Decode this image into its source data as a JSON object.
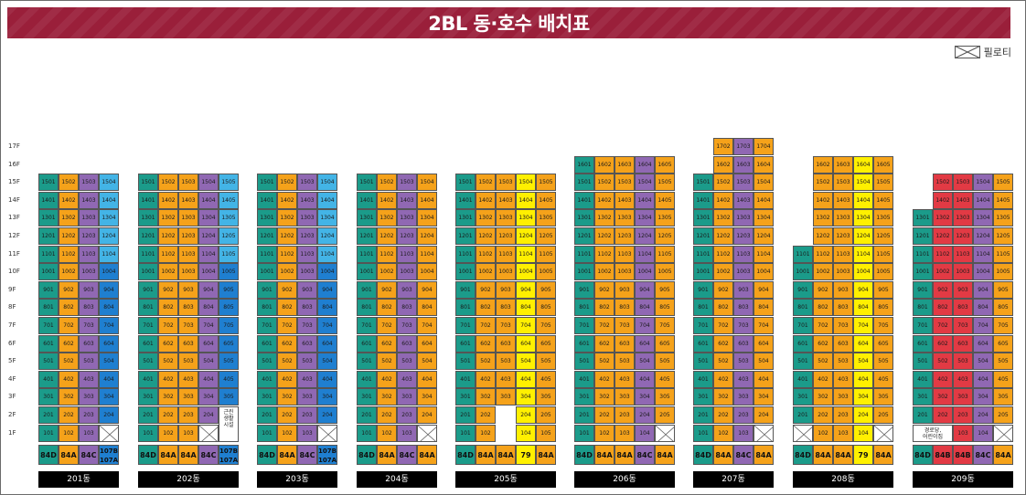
{
  "title": "2BL 동·호수 배치표",
  "legend": {
    "label": "필로티",
    "icon": "piloti-icon"
  },
  "floors": [
    "17F",
    "16F",
    "15F",
    "14F",
    "13F",
    "12F",
    "11F",
    "10F",
    "9F",
    "8F",
    "7F",
    "6F",
    "5F",
    "4F",
    "3F",
    "2F",
    "1F"
  ],
  "colors": {
    "84D": "#1b9b8a",
    "84A": "#f5a21a",
    "84B": "#e23a44",
    "84C": "#9068b3",
    "79": "#fff000",
    "107": "#43b4e6",
    "107dark": "#1f7fd0",
    "blank": "#ffffff"
  },
  "buildings": [
    {
      "label": "201동",
      "columns": [
        {
          "type": "84D",
          "suffix": "01",
          "top": 15,
          "bottom": 1
        },
        {
          "type": "84A",
          "suffix": "02",
          "top": 15,
          "bottom": 1
        },
        {
          "type": "84C",
          "suffix": "03",
          "top": 15,
          "bottom": 1
        },
        {
          "type": "107",
          "suffix": "04",
          "top": 15,
          "bottom": 2,
          "bottom_blank": true,
          "light_above": 11
        }
      ],
      "types": [
        "84D",
        "84A",
        "84C",
        "107B|107A"
      ]
    },
    {
      "label": "202동",
      "columns": [
        {
          "type": "84D",
          "suffix": "01",
          "top": 15,
          "bottom": 1
        },
        {
          "type": "84A",
          "suffix": "02",
          "top": 15,
          "bottom": 1
        },
        {
          "type": "84A",
          "suffix": "03",
          "top": 15,
          "bottom": 1
        },
        {
          "type": "84C",
          "suffix": "04",
          "top": 15,
          "bottom": 2,
          "bottom_blank": true
        },
        {
          "type": "107",
          "suffix": "05",
          "top": 15,
          "bottom": 3,
          "light_above": 11,
          "note": "근린\n생활\n시설"
        }
      ],
      "types": [
        "84D",
        "84A",
        "84A",
        "84C",
        "107B|107A"
      ]
    },
    {
      "label": "203동",
      "columns": [
        {
          "type": "84D",
          "suffix": "01",
          "top": 15,
          "bottom": 1
        },
        {
          "type": "84A",
          "suffix": "02",
          "top": 15,
          "bottom": 1
        },
        {
          "type": "84C",
          "suffix": "03",
          "top": 15,
          "bottom": 1
        },
        {
          "type": "107",
          "suffix": "04",
          "top": 15,
          "bottom": 2,
          "bottom_blank": true,
          "light_above": 11
        }
      ],
      "types": [
        "84D",
        "84A",
        "84C",
        "107B|107A"
      ]
    },
    {
      "label": "204동",
      "columns": [
        {
          "type": "84D",
          "suffix": "01",
          "top": 15,
          "bottom": 1
        },
        {
          "type": "84A",
          "suffix": "02",
          "top": 15,
          "bottom": 1
        },
        {
          "type": "84C",
          "suffix": "03",
          "top": 15,
          "bottom": 1
        },
        {
          "type": "84A",
          "suffix": "04",
          "top": 15,
          "bottom": 2,
          "bottom_blank": true
        }
      ],
      "types": [
        "84D",
        "84A",
        "84C",
        "84A"
      ]
    },
    {
      "label": "205동",
      "columns": [
        {
          "type": "84D",
          "suffix": "01",
          "top": 15,
          "bottom": 1
        },
        {
          "type": "84A",
          "suffix": "02",
          "top": 15,
          "bottom": 1
        },
        {
          "type": "84A",
          "suffix": "03",
          "top": 15,
          "bottom": 3,
          "blank_floors": [
            1,
            2
          ]
        },
        {
          "type": "79",
          "suffix": "04",
          "top": 15,
          "bottom": 1
        },
        {
          "type": "84A",
          "suffix": "05",
          "top": 15,
          "bottom": 1
        }
      ],
      "types": [
        "84D",
        "84A",
        "84A",
        "79",
        "84A"
      ]
    },
    {
      "label": "206동",
      "columns": [
        {
          "type": "84D",
          "suffix": "01",
          "top": 16,
          "bottom": 1
        },
        {
          "type": "84A",
          "suffix": "02",
          "top": 16,
          "bottom": 1
        },
        {
          "type": "84A",
          "suffix": "03",
          "top": 16,
          "bottom": 1
        },
        {
          "type": "84C",
          "suffix": "04",
          "top": 16,
          "bottom": 1
        },
        {
          "type": "84A",
          "suffix": "05",
          "top": 16,
          "bottom": 2,
          "bottom_blank": true
        }
      ],
      "types": [
        "84D",
        "84A",
        "84A",
        "84C",
        "84A"
      ]
    },
    {
      "label": "207동",
      "columns": [
        {
          "type": "84D",
          "suffix": "01",
          "top": 15,
          "bottom": 1
        },
        {
          "type": "84A",
          "suffix": "02",
          "top": 17,
          "bottom": 1
        },
        {
          "type": "84C",
          "suffix": "03",
          "top": 17,
          "bottom": 1
        },
        {
          "type": "84A",
          "suffix": "04",
          "top": 17,
          "bottom": 2,
          "bottom_blank": true
        }
      ],
      "types": [
        "84D",
        "84A",
        "84C",
        "84A"
      ]
    },
    {
      "label": "208동",
      "columns": [
        {
          "type": "84D",
          "suffix": "01",
          "top": 11,
          "bottom": 2,
          "bottom_blank": true
        },
        {
          "type": "84A",
          "suffix": "02",
          "top": 16,
          "bottom": 1
        },
        {
          "type": "84A",
          "suffix": "03",
          "top": 16,
          "bottom": 1
        },
        {
          "type": "79",
          "suffix": "04",
          "top": 16,
          "bottom": 1
        },
        {
          "type": "84A",
          "suffix": "05",
          "top": 16,
          "bottom": 2,
          "bottom_blank": true
        }
      ],
      "types": [
        "84D",
        "84A",
        "84A",
        "79",
        "84A"
      ]
    },
    {
      "label": "209동",
      "columns": [
        {
          "type": "84D",
          "suffix": "01",
          "top": 13,
          "bottom": 2,
          "note_wide": "경로당,\n어린이집"
        },
        {
          "type": "84B",
          "suffix": "02",
          "top": 15,
          "bottom": 2
        },
        {
          "type": "84B",
          "suffix": "03",
          "top": 15,
          "bottom": 1
        },
        {
          "type": "84C",
          "suffix": "04",
          "top": 15,
          "bottom": 1
        },
        {
          "type": "84A",
          "suffix": "05",
          "top": 15,
          "bottom": 2,
          "bottom_blank": true
        }
      ],
      "types": [
        "84D",
        "84B",
        "84B",
        "84C",
        "84A"
      ]
    }
  ]
}
